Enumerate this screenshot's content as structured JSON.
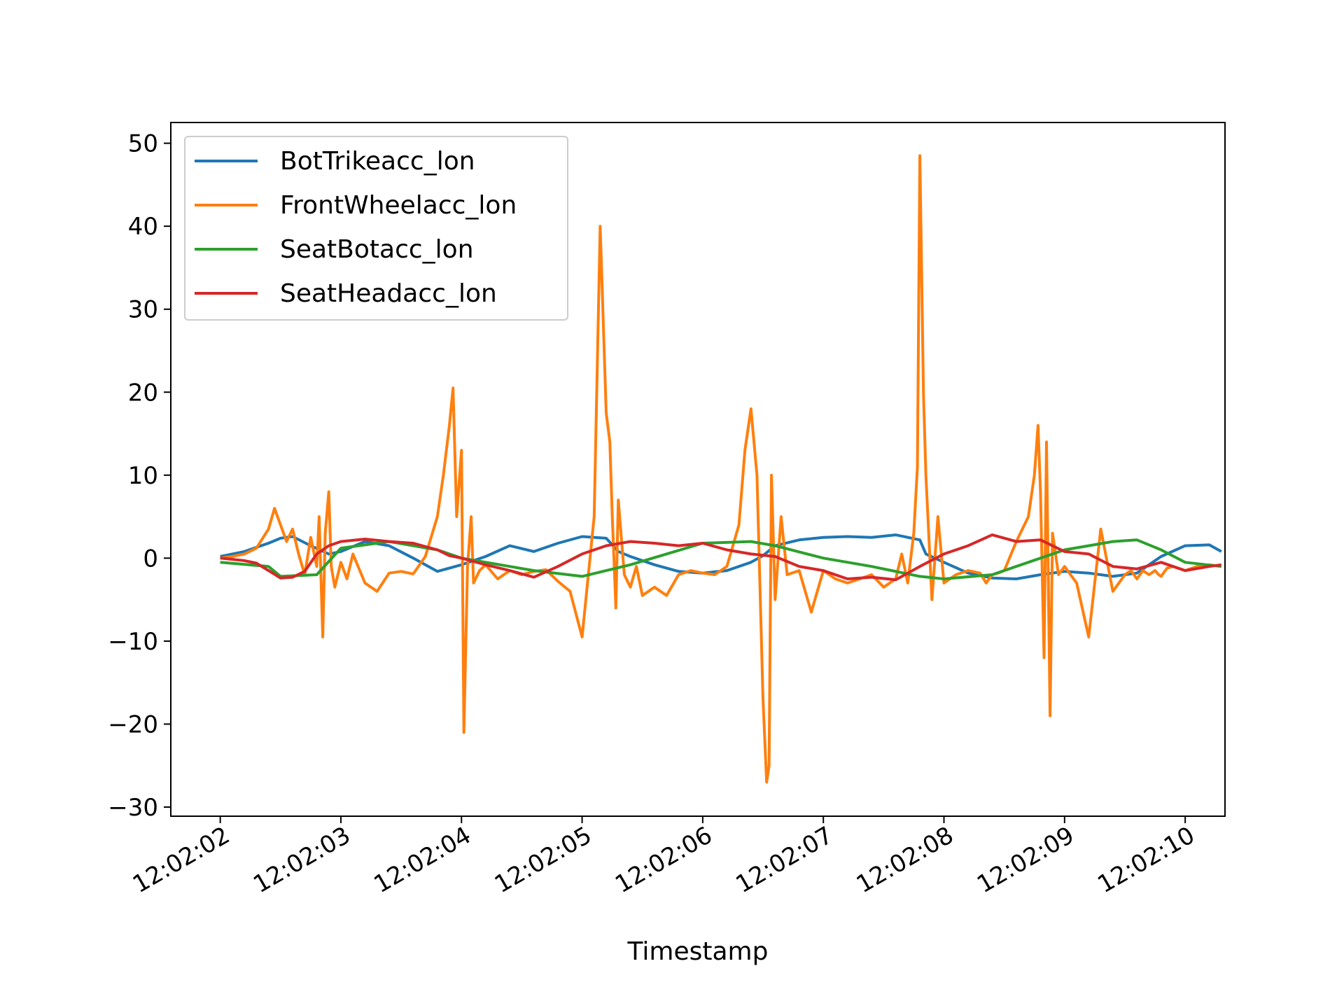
{
  "chart_data": {
    "type": "line",
    "title": "",
    "xlabel": "Timestamp",
    "ylabel": "",
    "x_ticks": [
      "12:02:02",
      "12:02:03",
      "12:02:04",
      "12:02:05",
      "12:02:06",
      "12:02:07",
      "12:02:08",
      "12:02:09",
      "12:02:10"
    ],
    "y_ticks": [
      50,
      40,
      30,
      20,
      10,
      0,
      -10,
      -20,
      -30
    ],
    "y_tick_labels": [
      "50",
      "40",
      "30",
      "20",
      "10",
      "0",
      "−10",
      "−20",
      "−30"
    ],
    "xlim": [
      -0.41,
      8.33
    ],
    "ylim": [
      -31.1,
      52.5
    ],
    "grid": false,
    "legend": "upper left",
    "series": [
      {
        "name": "BotTrikeacc_lon",
        "color": "#1f77b4",
        "x": [
          0,
          0.2,
          0.4,
          0.5,
          0.6,
          0.75,
          0.9,
          1.0,
          1.2,
          1.4,
          1.6,
          1.8,
          2.0,
          2.2,
          2.4,
          2.6,
          2.8,
          3.0,
          3.2,
          3.3,
          3.4,
          3.6,
          3.8,
          4.0,
          4.2,
          4.4,
          4.5,
          4.6,
          4.8,
          5.0,
          5.2,
          5.4,
          5.6,
          5.8,
          5.85,
          6.0,
          6.2,
          6.4,
          6.6,
          6.8,
          7.0,
          7.2,
          7.4,
          7.6,
          7.8,
          8.0,
          8.2,
          8.3
        ],
        "y": [
          0.2,
          0.8,
          1.8,
          2.4,
          2.6,
          1.5,
          0.5,
          0.8,
          2.0,
          1.5,
          0.0,
          -1.6,
          -0.8,
          0.2,
          1.5,
          0.8,
          1.8,
          2.6,
          2.4,
          0.8,
          0.2,
          -0.8,
          -1.6,
          -1.8,
          -1.5,
          -0.5,
          0.3,
          1.5,
          2.2,
          2.5,
          2.6,
          2.5,
          2.8,
          2.2,
          0.5,
          -0.5,
          -1.8,
          -2.4,
          -2.5,
          -2.0,
          -1.6,
          -1.8,
          -2.2,
          -1.8,
          0.2,
          1.5,
          1.6,
          0.8
        ]
      },
      {
        "name": "FrontWheelacc_lon",
        "color": "#ff7f0e",
        "x": [
          0,
          0.1,
          0.2,
          0.3,
          0.4,
          0.45,
          0.5,
          0.55,
          0.6,
          0.65,
          0.7,
          0.75,
          0.8,
          0.82,
          0.85,
          0.87,
          0.9,
          0.92,
          0.95,
          1.0,
          1.05,
          1.1,
          1.2,
          1.3,
          1.4,
          1.5,
          1.6,
          1.7,
          1.8,
          1.85,
          1.9,
          1.93,
          1.96,
          2.0,
          2.02,
          2.05,
          2.08,
          2.1,
          2.15,
          2.2,
          2.3,
          2.4,
          2.5,
          2.6,
          2.7,
          2.8,
          2.9,
          3.0,
          3.1,
          3.15,
          3.2,
          3.23,
          3.25,
          3.28,
          3.3,
          3.35,
          3.4,
          3.45,
          3.5,
          3.6,
          3.7,
          3.8,
          3.9,
          4.0,
          4.1,
          4.2,
          4.3,
          4.35,
          4.4,
          4.45,
          4.5,
          4.53,
          4.55,
          4.57,
          4.6,
          4.65,
          4.7,
          4.8,
          4.9,
          5.0,
          5.1,
          5.2,
          5.3,
          5.4,
          5.5,
          5.6,
          5.65,
          5.7,
          5.75,
          5.78,
          5.8,
          5.83,
          5.85,
          5.9,
          5.95,
          6.0,
          6.1,
          6.2,
          6.3,
          6.35,
          6.4,
          6.45,
          6.5,
          6.6,
          6.7,
          6.75,
          6.78,
          6.8,
          6.83,
          6.85,
          6.88,
          6.9,
          6.95,
          7.0,
          7.1,
          7.2,
          7.3,
          7.4,
          7.5,
          7.55,
          7.6,
          7.65,
          7.7,
          7.72,
          7.75,
          7.78,
          7.8,
          7.83,
          7.85,
          7.9,
          8.0,
          8.1,
          8.2,
          8.3
        ],
        "y": [
          0,
          0.2,
          0.5,
          1.2,
          3.5,
          6.0,
          4.0,
          2.0,
          3.5,
          0.5,
          -2.0,
          2.5,
          -1.0,
          5.0,
          -9.5,
          3.0,
          8.0,
          -1.0,
          -3.5,
          -0.5,
          -2.5,
          0.5,
          -3.0,
          -4.0,
          -1.8,
          -1.6,
          -1.9,
          0.2,
          5.0,
          10.0,
          16.0,
          20.5,
          5.0,
          13.0,
          -21.0,
          -1.0,
          5.0,
          -3.0,
          -1.5,
          -0.8,
          -2.5,
          -1.5,
          -2.0,
          -1.6,
          -1.4,
          -2.8,
          -4.0,
          -9.5,
          5.0,
          40.0,
          17.5,
          14.0,
          5.0,
          -6.0,
          7.0,
          -2.0,
          -3.5,
          -1.0,
          -4.5,
          -3.5,
          -4.5,
          -2.0,
          -1.5,
          -1.8,
          -2.0,
          -1.0,
          4.0,
          13.0,
          18.0,
          10.0,
          -17.0,
          -27.0,
          -25.0,
          10.0,
          -5.0,
          5.0,
          -2.0,
          -1.5,
          -6.5,
          -1.5,
          -2.5,
          -3.0,
          -2.5,
          -2.0,
          -3.5,
          -2.5,
          0.5,
          -3.0,
          3.0,
          11.0,
          48.5,
          20.0,
          10.0,
          -5.0,
          5.0,
          -3.0,
          -2.0,
          -1.5,
          -1.8,
          -3.0,
          -2.0,
          -1.8,
          -1.5,
          2.0,
          5.0,
          10.0,
          16.0,
          8.0,
          -12.0,
          14.0,
          -19.0,
          3.0,
          -2.0,
          -1.0,
          -3.0,
          -9.5,
          3.5,
          -4.0,
          -2.0,
          -1.5,
          -2.5,
          -1.5,
          -2.0,
          -1.8,
          -1.5,
          -2.0,
          -2.2,
          -1.6,
          -1.2,
          -1.0,
          -1.5,
          -1.0,
          -0.8,
          -1.0
        ]
      },
      {
        "name": "SeatBotacc_lon",
        "color": "#2ca02c",
        "x": [
          0,
          0.4,
          0.5,
          0.8,
          1.0,
          1.4,
          1.8,
          2.0,
          2.4,
          2.6,
          3.0,
          3.4,
          3.7,
          4.0,
          4.4,
          4.6,
          5.0,
          5.4,
          5.8,
          6.0,
          6.4,
          6.8,
          7.0,
          7.2,
          7.4,
          7.6,
          7.8,
          8.0,
          8.3
        ],
        "y": [
          -0.5,
          -1.0,
          -2.2,
          -2.0,
          1.2,
          2.0,
          1.0,
          0.0,
          -1.0,
          -1.5,
          -2.2,
          -0.8,
          0.5,
          1.8,
          2.0,
          1.5,
          0.0,
          -1.0,
          -2.2,
          -2.5,
          -2.0,
          0.0,
          1.0,
          1.5,
          2.0,
          2.2,
          1.0,
          -0.5,
          -1.0
        ]
      },
      {
        "name": "SeatHeadacc_lon",
        "color": "#d62728",
        "x": [
          0,
          0.2,
          0.3,
          0.4,
          0.5,
          0.6,
          0.7,
          0.8,
          0.9,
          1.0,
          1.2,
          1.4,
          1.6,
          1.8,
          1.9,
          2.0,
          2.2,
          2.4,
          2.6,
          2.8,
          3.0,
          3.2,
          3.4,
          3.6,
          3.8,
          4.0,
          4.2,
          4.4,
          4.6,
          4.8,
          5.0,
          5.2,
          5.4,
          5.6,
          5.8,
          6.0,
          6.2,
          6.4,
          6.6,
          6.8,
          7.0,
          7.2,
          7.4,
          7.6,
          7.8,
          8.0,
          8.2,
          8.3
        ],
        "y": [
          0,
          -0.3,
          -0.6,
          -1.5,
          -2.4,
          -2.3,
          -1.6,
          0.5,
          1.5,
          2.0,
          2.3,
          2.0,
          1.8,
          1.0,
          0.3,
          0.0,
          -0.8,
          -1.5,
          -2.3,
          -1.0,
          0.5,
          1.5,
          2.0,
          1.8,
          1.5,
          1.8,
          1.0,
          0.5,
          0.2,
          -1.0,
          -1.5,
          -2.5,
          -2.3,
          -2.6,
          -1.0,
          0.5,
          1.5,
          2.8,
          2.0,
          2.2,
          0.8,
          0.5,
          -1.0,
          -1.3,
          -0.5,
          -1.5,
          -1.0,
          -0.8
        ]
      }
    ]
  }
}
